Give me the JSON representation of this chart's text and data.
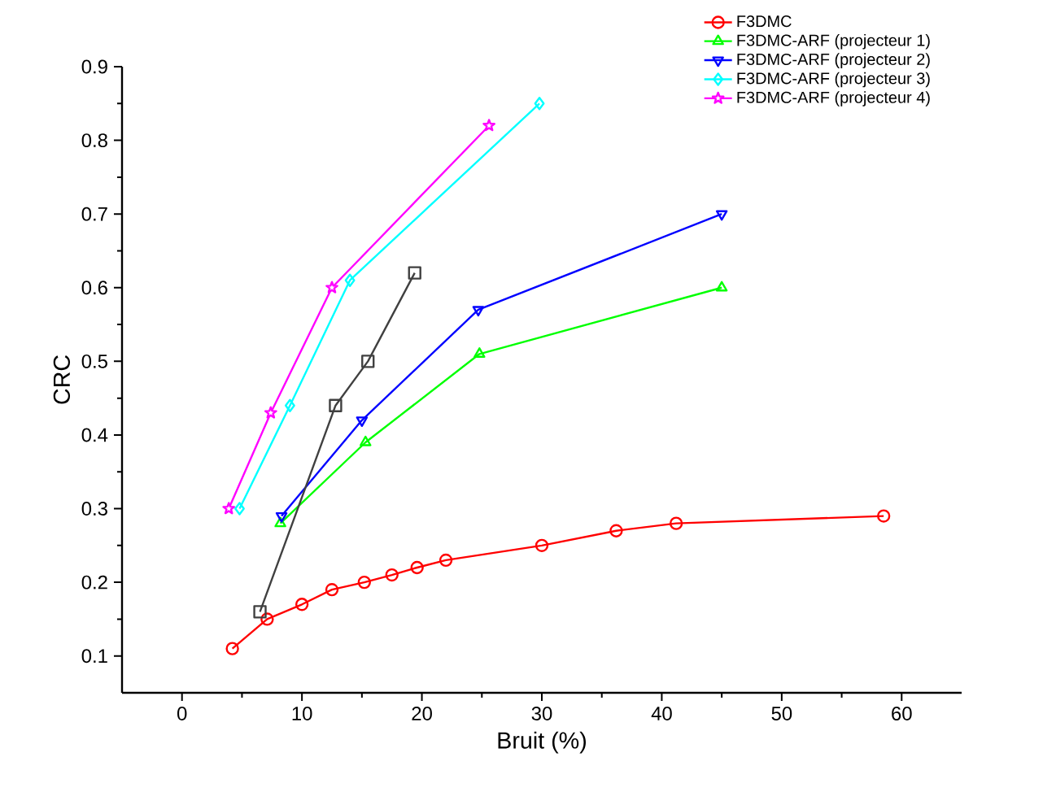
{
  "chart_data": {
    "type": "line",
    "xlabel": "Bruit (%)",
    "ylabel": "CRC",
    "xlim": [
      -5,
      65
    ],
    "ylim": [
      0.05,
      0.9
    ],
    "xticks": [
      0,
      10,
      20,
      30,
      40,
      50,
      60
    ],
    "yticks": [
      0.1,
      0.2,
      0.3,
      0.4,
      0.5,
      0.6,
      0.7,
      0.8,
      0.9
    ],
    "grid": false,
    "legend": "top right",
    "series": [
      {
        "name": "F3DMC",
        "color": "#ff0000",
        "marker": "circle",
        "x": [
          4.2,
          7.1,
          10,
          12.5,
          15.2,
          17.5,
          19.6,
          22,
          30,
          36.2,
          41.2,
          58.5
        ],
        "values": [
          0.11,
          0.15,
          0.17,
          0.19,
          0.2,
          0.21,
          0.22,
          0.23,
          0.25,
          0.27,
          0.28,
          0.29
        ]
      },
      {
        "name": "F3DMC-ARF (projecteur 1)",
        "color": "#00ff00",
        "marker": "triangle",
        "x": [
          8.2,
          15.3,
          24.8,
          45
        ],
        "values": [
          0.28,
          0.39,
          0.51,
          0.6
        ]
      },
      {
        "name": "F3DMC-ARF (projecteur 2)",
        "color": "#0000ff",
        "marker": "triangle down",
        "x": [
          8.3,
          15,
          24.7,
          45
        ],
        "values": [
          0.29,
          0.42,
          0.57,
          0.7
        ]
      },
      {
        "name": "F3DMC-ARF (projecteur 3)",
        "color": "#00ffff",
        "marker": "diamond",
        "x": [
          4.8,
          9,
          14,
          29.8
        ],
        "values": [
          0.3,
          0.44,
          0.61,
          0.85
        ]
      },
      {
        "color": "#404040",
        "marker": "square",
        "x": [
          6.5,
          12.8,
          15.5,
          19.4
        ],
        "values": [
          0.16,
          0.44,
          0.5,
          0.62
        ]
      },
      {
        "name": "F3DMC-ARF (projecteur 4)",
        "color": "#ff00ff",
        "marker": "star",
        "x": [
          3.9,
          7.4,
          12.5,
          25.6
        ],
        "values": [
          0.3,
          0.43,
          0.6,
          0.82
        ]
      }
    ]
  }
}
